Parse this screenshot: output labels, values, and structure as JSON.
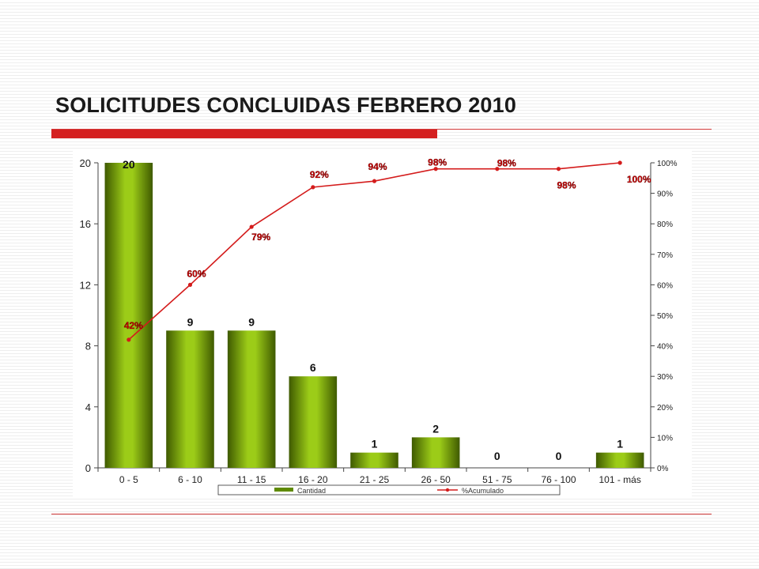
{
  "slide": {
    "title": "SOLICITUDES CONCLUIDAS FEBRERO 2010"
  },
  "colors": {
    "bar": "#7fae00",
    "bar_dark": "#3f5a00",
    "line": "#d41c1c",
    "title_rule": "#d42020"
  },
  "chart_data": {
    "type": "bar",
    "categories": [
      "0  -  5",
      "6  -  10",
      "11  -  15",
      "16  -  20",
      "21  -  25",
      "26  -  50",
      "51  -  75",
      "76  -  100",
      "101  -  más"
    ],
    "series": [
      {
        "name": "Cantidad",
        "type": "bar",
        "axis": "left",
        "values": [
          20,
          9,
          9,
          6,
          1,
          2,
          0,
          0,
          1
        ]
      },
      {
        "name": "%Acumulado",
        "type": "line",
        "axis": "right",
        "values": [
          42,
          60,
          79,
          92,
          94,
          98,
          98,
          98,
          100
        ]
      }
    ],
    "bar_labels": [
      "20",
      "9",
      "9",
      "6",
      "1",
      "2",
      "0",
      "0",
      "1"
    ],
    "point_labels": [
      "42%",
      "60%",
      "79%",
      "92%",
      "94%",
      "98%",
      "98%",
      "98%",
      "100%"
    ],
    "y_left": {
      "min": 0,
      "max": 20,
      "ticks": [
        "0",
        "4",
        "8",
        "12",
        "16",
        "20"
      ]
    },
    "y_right": {
      "min": 0,
      "max": 100,
      "ticks": [
        "0%",
        "10%",
        "20%",
        "30%",
        "40%",
        "50%",
        "60%",
        "70%",
        "80%",
        "90%",
        "100%"
      ]
    },
    "legend": {
      "position": "bottom",
      "entries": [
        "Cantidad",
        "%Acumulado"
      ]
    },
    "grid": false
  }
}
